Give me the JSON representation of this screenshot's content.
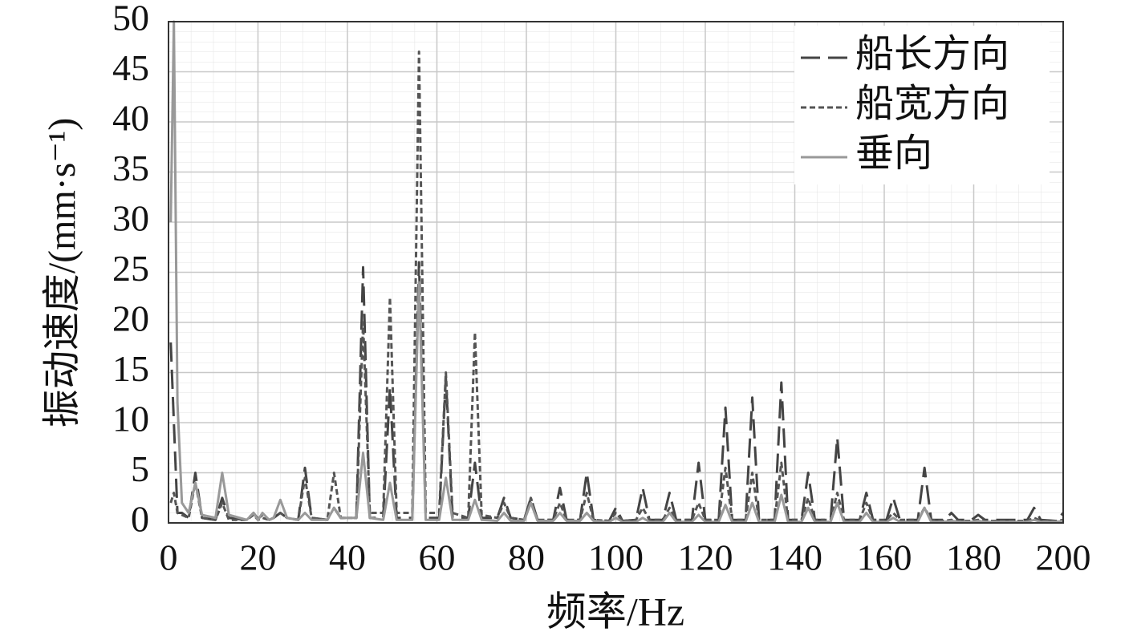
{
  "chart_data": {
    "type": "line",
    "xlabel": "频率/Hz",
    "ylabel": "振动速度/(mm·s⁻¹)",
    "xlim": [
      0,
      200
    ],
    "xticks": [
      0,
      20,
      40,
      60,
      80,
      100,
      120,
      140,
      160,
      180,
      200
    ],
    "ylim": [
      0,
      50
    ],
    "yticks": [
      0,
      5,
      10,
      15,
      20,
      25,
      30,
      35,
      40,
      45,
      50
    ],
    "grid": true,
    "legend": "upper right",
    "x": [
      0.5,
      1.2,
      2,
      3,
      4.5,
      6,
      7.5,
      10.5,
      12,
      13.5,
      17.5,
      19,
      20,
      21,
      22.5,
      23.5,
      25,
      26.5,
      29,
      30.5,
      32,
      35.5,
      37,
      38.5,
      42,
      43.5,
      45,
      48,
      49.5,
      51,
      54.5,
      56,
      57.5,
      60.5,
      62,
      63.5,
      67,
      68.5,
      70,
      73.5,
      75,
      76.5,
      79.5,
      81,
      82.5,
      86,
      87.5,
      89,
      92,
      93.5,
      95,
      98.5,
      100,
      101.5,
      104.5,
      106,
      107.5,
      110.5,
      112,
      113.5,
      117,
      118.5,
      120,
      123,
      124.5,
      126,
      129,
      130.5,
      132,
      135.5,
      137,
      138.5,
      141.5,
      143,
      144.5,
      148,
      149.5,
      151,
      154.5,
      156,
      157.5,
      160.5,
      162,
      163.5,
      167.5,
      169,
      170.5,
      173.5,
      175,
      176.5,
      179.5,
      181,
      182.5,
      192,
      193.5,
      195,
      198.5,
      200
    ],
    "series": [
      {
        "name": "船长方向",
        "color": "#444444",
        "line_style": "long-dash",
        "values": [
          18,
          10,
          1,
          1,
          0.5,
          5,
          0.5,
          0.3,
          2.5,
          0.5,
          0.3,
          1,
          0.4,
          0.8,
          0.3,
          0.5,
          1,
          0.5,
          0.3,
          5.5,
          0.5,
          0.3,
          1.5,
          0.5,
          0.5,
          25.5,
          0.5,
          0.5,
          13.5,
          0.5,
          0.5,
          26,
          0.5,
          0.5,
          14.5,
          0.5,
          0.5,
          6,
          0.5,
          0.5,
          2.5,
          0.5,
          0.3,
          2.5,
          0.3,
          0.3,
          3.5,
          0.3,
          0.3,
          5,
          0.3,
          0.2,
          1.5,
          0.2,
          0.3,
          3.5,
          0.3,
          0.3,
          3,
          0.3,
          0.3,
          6,
          0.3,
          0.3,
          11.5,
          0.3,
          0.3,
          12.5,
          0.3,
          0.3,
          14,
          0.3,
          0.3,
          5,
          0.3,
          0.3,
          8.5,
          0.3,
          0.3,
          3,
          0.3,
          0.3,
          2.5,
          0.3,
          0.3,
          5.5,
          0.3,
          0.3,
          1,
          0.3,
          0.3,
          0.8,
          0.3,
          0.3,
          1.5,
          0.3,
          0.2,
          1
        ]
      },
      {
        "name": "船宽方向",
        "color": "#555555",
        "line_style": "short-dash",
        "values": [
          2,
          3,
          1,
          0.8,
          0.5,
          4,
          0.5,
          0.3,
          2,
          0.3,
          0.3,
          0.8,
          0.3,
          0.5,
          0.3,
          0.5,
          1,
          0.5,
          0.3,
          4.5,
          0.5,
          0.3,
          5,
          0.5,
          0.5,
          20,
          1,
          1,
          22.5,
          1,
          1,
          47,
          1,
          1,
          15,
          1,
          0.5,
          19,
          0.8,
          0.5,
          2,
          0.5,
          0.3,
          2.5,
          0.3,
          0.3,
          2,
          0.3,
          0.3,
          3,
          0.3,
          0.2,
          1,
          0.2,
          0.3,
          1.5,
          0.3,
          0.3,
          1.5,
          0.3,
          0.3,
          2,
          0.3,
          0.3,
          5.5,
          0.3,
          0.3,
          5,
          0.3,
          0.3,
          6,
          0.3,
          0.3,
          2.5,
          0.3,
          0.3,
          3,
          0.3,
          0.3,
          2,
          0.3,
          0.3,
          1,
          0.3,
          0.3,
          1.5,
          0.3,
          0.2,
          0.3,
          0.2,
          0.2,
          0.3,
          0.2,
          0.2,
          0.5,
          0.2,
          0.2,
          0.3
        ]
      },
      {
        "name": "垂向",
        "color": "#999999",
        "line_style": "solid",
        "values": [
          30,
          50,
          12,
          2,
          1,
          4,
          0.8,
          0.5,
          5,
          0.8,
          0.3,
          1,
          0.3,
          1,
          0.3,
          0.5,
          2.3,
          0.5,
          0.3,
          1,
          0.3,
          0.3,
          1.5,
          0.5,
          0.5,
          7,
          0.5,
          0.3,
          4,
          0.3,
          0.3,
          24,
          0.3,
          0.3,
          4.5,
          0.3,
          0.3,
          2.3,
          0.3,
          0.2,
          1,
          0.2,
          0.2,
          2,
          0.2,
          0.2,
          1,
          0.2,
          0.2,
          1,
          0.2,
          0.1,
          0.5,
          0.1,
          0.1,
          0.5,
          0.1,
          0.1,
          1,
          0.1,
          0.1,
          0.8,
          0.1,
          0.1,
          1.8,
          0.1,
          0.1,
          2,
          0.1,
          0.1,
          2.8,
          0.1,
          0.1,
          1.5,
          0.1,
          0.1,
          2,
          0.1,
          0.1,
          1,
          0.1,
          0.1,
          0.5,
          0.1,
          0.1,
          1.5,
          0.1,
          0.1,
          0.2,
          0.1,
          0.1,
          0.2,
          0.1,
          0.1,
          0.3,
          0.1,
          0.1,
          0.2
        ]
      }
    ]
  }
}
